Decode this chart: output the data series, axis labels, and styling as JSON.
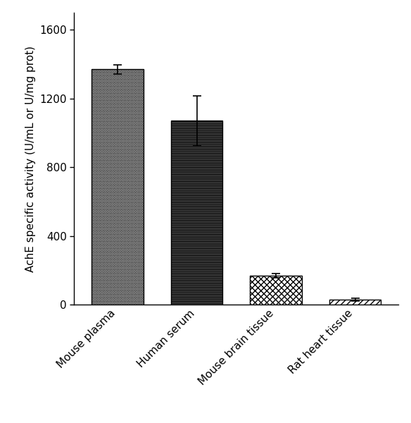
{
  "categories": [
    "Mouse plasma",
    "Human serum",
    "Mouse brain tissue",
    "Rat heart tissue"
  ],
  "values": [
    1370,
    1070,
    170,
    30
  ],
  "errors": [
    28,
    145,
    12,
    8
  ],
  "ylabel": "AchE specific activity (U/mL or U/mg prot)",
  "ylim": [
    0,
    1700
  ],
  "yticks": [
    0,
    400,
    800,
    1200,
    1600
  ],
  "bar_width": 0.65,
  "bar_edge_color": "black",
  "bar_edge_width": 1.0,
  "figure_bg": "white",
  "axes_bg": "white",
  "hatch_patterns": [
    "..",
    "---",
    "xx",
    "////"
  ],
  "bar_face_colors": [
    "white",
    "white",
    "white",
    "white"
  ],
  "error_cap_size": 4,
  "error_line_width": 1.2,
  "tick_label_fontsize": 11,
  "ylabel_fontsize": 11
}
